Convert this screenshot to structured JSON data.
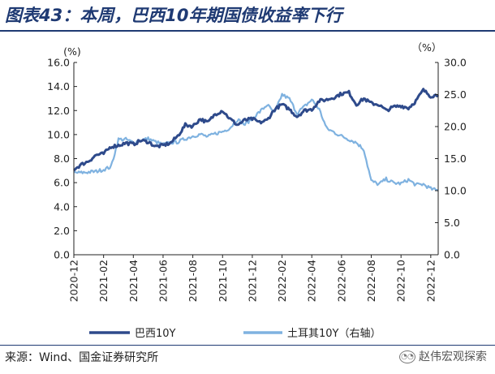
{
  "header": {
    "title": "图表43：本周，巴西10年期国债收益率下行"
  },
  "footer": {
    "source": "来源：Wind、国金证券研究所",
    "watermark": "赵伟宏观探索",
    "watermark_icon": "wechat-icon"
  },
  "colors": {
    "brazil": "#2e4a8b",
    "turkey": "#7fb2e0",
    "axis": "#222222"
  },
  "chart_data": {
    "type": "line",
    "title": "图表43：本周，巴西10年期国债收益率下行",
    "left_axis": {
      "label": "(%)",
      "min": 0,
      "max": 16,
      "ticks": [
        "0.0",
        "2.0",
        "4.0",
        "6.0",
        "8.0",
        "10.0",
        "12.0",
        "14.0",
        "16.0"
      ]
    },
    "right_axis": {
      "label": "（%）",
      "min": 0,
      "max": 30,
      "ticks": [
        "0.0",
        "5.0",
        "10.0",
        "15.0",
        "20.0",
        "25.0",
        "30.0"
      ]
    },
    "x_ticks": [
      "2020-12",
      "2021-02",
      "2021-04",
      "2021-06",
      "2021-08",
      "2021-10",
      "2021-12",
      "2022-02",
      "2022-04",
      "2022-06",
      "2022-08",
      "2022-10",
      "2022-12"
    ],
    "x_unit": "months since 2020-12",
    "x_range": [
      0,
      24.5
    ],
    "legend_position": "bottom",
    "series": [
      {
        "name": "巴西10Y",
        "axis": "left",
        "x": [
          0,
          0.5,
          1,
          1.5,
          2,
          2.5,
          3,
          3.5,
          4,
          4.5,
          5,
          5.5,
          6,
          6.5,
          7,
          7.5,
          8,
          8.5,
          9,
          9.5,
          10,
          10.5,
          11,
          11.5,
          12,
          12.5,
          13,
          13.5,
          14,
          14.5,
          15,
          15.5,
          16,
          16.5,
          17,
          17.5,
          18,
          18.5,
          19,
          19.5,
          20,
          20.5,
          21,
          21.5,
          22,
          22.5,
          23,
          23.5,
          24,
          24.5
        ],
        "values": [
          7.1,
          7.5,
          7.8,
          8.3,
          8.4,
          9.0,
          9.1,
          9.3,
          9.2,
          9.5,
          9.4,
          9.0,
          9.1,
          9.3,
          9.9,
          10.8,
          10.7,
          11.3,
          11.0,
          11.7,
          12.0,
          11.3,
          10.8,
          11.2,
          11.3,
          11.0,
          11.2,
          12.1,
          12.5,
          12.1,
          11.5,
          12.0,
          12.1,
          12.8,
          12.9,
          13.1,
          13.4,
          13.5,
          12.5,
          13.0,
          12.6,
          12.5,
          12.0,
          12.3,
          12.4,
          12.2,
          12.8,
          13.7,
          13.2,
          13.3
        ]
      },
      {
        "name": "土耳其10Y（右轴）",
        "axis": "right",
        "x": [
          0,
          0.5,
          1,
          1.5,
          2,
          2.5,
          3,
          3.5,
          4,
          4.5,
          5,
          5.5,
          6,
          6.5,
          7,
          7.5,
          8,
          8.5,
          9,
          9.5,
          10,
          10.5,
          11,
          11.5,
          12,
          12.5,
          13,
          13.5,
          14,
          14.5,
          15,
          15.5,
          16,
          16.5,
          17,
          17.5,
          18,
          18.5,
          19,
          19.5,
          20,
          20.5,
          21,
          21.5,
          22,
          22.5,
          23,
          23.5,
          24,
          24.5
        ],
        "values": [
          12.8,
          12.8,
          12.9,
          13.0,
          13.3,
          13.7,
          18.0,
          18.0,
          17.5,
          17.9,
          18.1,
          17.6,
          17.2,
          17.5,
          17.6,
          18.1,
          18.5,
          18.8,
          18.4,
          18.9,
          19.2,
          19.8,
          21.1,
          20.3,
          21.3,
          22.3,
          23.4,
          22.1,
          25.0,
          24.3,
          22.1,
          23.1,
          24.2,
          22.7,
          19.7,
          19.1,
          18.5,
          18.0,
          17.5,
          16.4,
          11.5,
          11.0,
          11.8,
          11.2,
          11.1,
          11.7,
          10.9,
          11.0,
          10.3,
          10.0
        ]
      }
    ]
  }
}
